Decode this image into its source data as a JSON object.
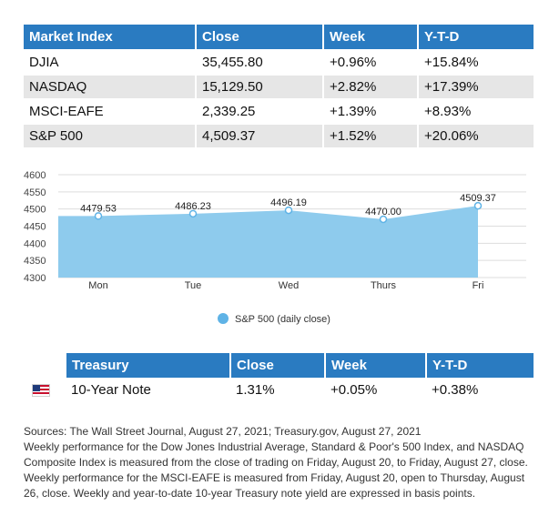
{
  "market_table": {
    "headers": [
      "Market Index",
      "Close",
      "Week",
      "Y-T-D"
    ],
    "rows": [
      [
        "DJIA",
        "35,455.80",
        "+0.96%",
        "+15.84%"
      ],
      [
        "NASDAQ",
        "15,129.50",
        "+2.82%",
        "+17.39%"
      ],
      [
        "MSCI-EAFE",
        "2,339.25",
        "+1.39%",
        "+8.93%"
      ],
      [
        "S&P 500",
        "4,509.37",
        "+1.52%",
        "+20.06%"
      ]
    ]
  },
  "chart_data": {
    "type": "area",
    "categories": [
      "Mon",
      "Tue",
      "Wed",
      "Thurs",
      "Fri"
    ],
    "series": [
      {
        "name": "S&P 500 (daily close)",
        "values": [
          4479.53,
          4486.23,
          4496.19,
          4470.0,
          4509.37
        ]
      }
    ],
    "data_labels": [
      "4479.53",
      "4486.23",
      "4496.19",
      "4470.00",
      "4509.37"
    ],
    "yticks": [
      4300,
      4350,
      4400,
      4450,
      4500,
      4550,
      4600
    ],
    "ylim": [
      4300,
      4600
    ],
    "grid": true,
    "legend_position": "bottom-center",
    "fill_color": "#8ecbed",
    "marker_color": "#5fb3e6"
  },
  "treasury_table": {
    "headers": [
      "",
      "Treasury",
      "Close",
      "Week",
      "Y-T-D"
    ],
    "flag_icon": "us-flag-icon",
    "row": [
      "10-Year Note",
      "1.31%",
      "+0.05%",
      "+0.38%"
    ]
  },
  "footnotes": [
    "Sources: The Wall Street Journal, August 27, 2021; Treasury.gov, August 27, 2021",
    "Weekly performance for the Dow Jones Industrial Average, Standard & Poor's 500 Index, and NASDAQ Composite Index is measured from the close of trading on Friday, August 20, to Friday, August 27, close. Weekly performance for the MSCI-EAFE is measured from Friday, August 20, open to Thursday, August 26, close. Weekly and year-to-date 10-year Treasury note yield are expressed in basis points."
  ],
  "colors": {
    "header_blue": "#2a7bc1",
    "row_gray": "#e6e6e6"
  }
}
